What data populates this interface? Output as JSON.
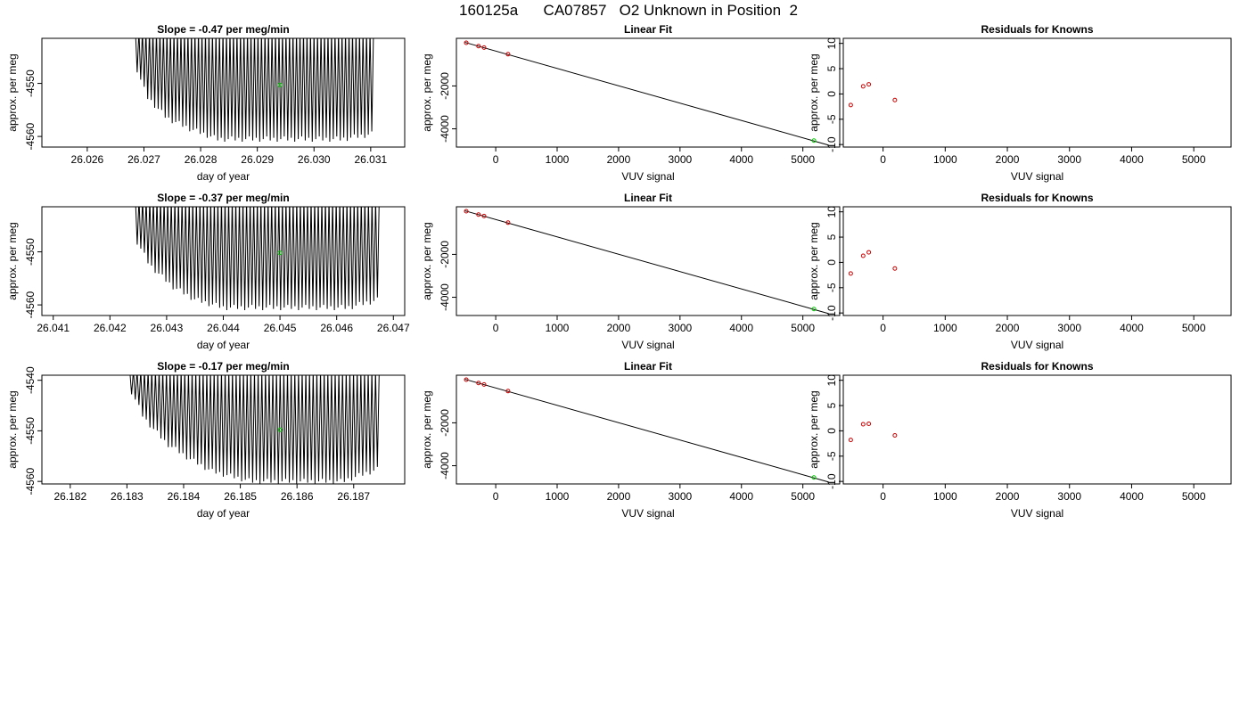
{
  "figure": {
    "title": "160125a      CA07857   O2 Unknown in Position  2"
  },
  "colors": {
    "line": "#000000",
    "known_point": "#cc0000",
    "unknown_point": "#00cc00"
  },
  "chart_data": [
    {
      "type": "line",
      "title": "Slope =  -0.47  per meg/min",
      "xlabel": "day of year",
      "ylabel": "approx. per meg",
      "xlim": [
        26.0252,
        26.0316
      ],
      "ylim": [
        -4562,
        -4541.5
      ],
      "xticks": [
        26.026,
        26.027,
        26.028,
        26.029,
        26.03,
        26.031
      ],
      "xtick_labels": [
        "26.026",
        "26.027",
        "26.028",
        "26.029",
        "26.030",
        "26.031"
      ],
      "yticks": [
        -4550,
        -4560
      ],
      "ytick_labels": [
        "-4550",
        "-4560"
      ],
      "series": [
        {
          "x_start": 26.02685,
          "x_end": 26.03105,
          "peak_count": 68,
          "upper_envelope": [
            [
              26.02685,
              -4540
            ],
            [
              26.0312,
              -4540
            ]
          ],
          "lower_envelope": [
            [
              26.02685,
              -4547
            ],
            [
              26.02705,
              -4553
            ],
            [
              26.0274,
              -4557
            ],
            [
              26.0278,
              -4559
            ],
            [
              26.0283,
              -4561
            ],
            [
              26.0305,
              -4561
            ],
            [
              26.03105,
              -4560
            ]
          ]
        }
      ],
      "unknown_point": {
        "x": 26.0294,
        "y": -4550.3
      }
    },
    {
      "type": "scatter",
      "title": "Linear Fit",
      "xlabel": "VUV signal",
      "ylabel": "approx. per meg",
      "xlim": [
        -640,
        5600
      ],
      "ylim": [
        -4850,
        220
      ],
      "xticks": [
        0,
        1000,
        2000,
        3000,
        4000,
        5000
      ],
      "xtick_labels": [
        "0",
        "1000",
        "2000",
        "3000",
        "4000",
        "5000"
      ],
      "yticks": [
        -2000,
        -4000
      ],
      "ytick_labels": [
        "-2000",
        "-4000"
      ],
      "fit_line": [
        [
          -500,
          30
        ],
        [
          5420,
          -4760
        ]
      ],
      "knowns": [
        [
          -480,
          12
        ],
        [
          -280,
          -145
        ],
        [
          -190,
          -210
        ],
        [
          200,
          -520
        ]
      ],
      "unknown_point": {
        "x": 5180,
        "y": -4550
      }
    },
    {
      "type": "scatter",
      "title": "Residuals for Knowns",
      "xlabel": "VUV signal",
      "ylabel": "approx. per meg",
      "xlim": [
        -640,
        5600
      ],
      "ylim": [
        -10.5,
        11
      ],
      "xticks": [
        0,
        1000,
        2000,
        3000,
        4000,
        5000
      ],
      "xtick_labels": [
        "0",
        "1000",
        "2000",
        "3000",
        "4000",
        "5000"
      ],
      "yticks": [
        10,
        5,
        0,
        -5,
        -10
      ],
      "ytick_labels": [
        "10",
        "5",
        "0",
        "-5",
        "-10"
      ],
      "points": [
        [
          -520,
          -2.2
        ],
        [
          -320,
          1.5
        ],
        [
          -230,
          1.9
        ],
        [
          190,
          -1.2
        ]
      ]
    },
    {
      "type": "line",
      "title": "Slope =  -0.37  per meg/min",
      "xlabel": "day of year",
      "ylabel": "approx. per meg",
      "xlim": [
        26.0408,
        26.0472
      ],
      "ylim": [
        -4562,
        -4541.5
      ],
      "xticks": [
        26.041,
        26.042,
        26.043,
        26.044,
        26.045,
        26.046,
        26.047
      ],
      "xtick_labels": [
        "26.041",
        "26.042",
        "26.043",
        "26.044",
        "26.045",
        "26.046",
        "26.047"
      ],
      "yticks": [
        -4550,
        -4560
      ],
      "ytick_labels": [
        "-4550",
        "-4560"
      ],
      "series": [
        {
          "x_start": 26.04245,
          "x_end": 26.04675,
          "peak_count": 68,
          "upper_envelope": [
            [
              26.04245,
              -4540
            ],
            [
              26.0469,
              -4540
            ]
          ],
          "lower_envelope": [
            [
              26.04245,
              -4548
            ],
            [
              26.0427,
              -4553
            ],
            [
              26.0431,
              -4557
            ],
            [
              26.0435,
              -4559.5
            ],
            [
              26.044,
              -4561
            ],
            [
              26.0462,
              -4561
            ],
            [
              26.04675,
              -4559.5
            ]
          ]
        }
      ],
      "unknown_point": {
        "x": 26.045,
        "y": -4550.2
      }
    },
    {
      "type": "scatter",
      "title": "Linear Fit",
      "xlabel": "VUV signal",
      "ylabel": "approx. per meg",
      "xlim": [
        -640,
        5600
      ],
      "ylim": [
        -4850,
        220
      ],
      "xticks": [
        0,
        1000,
        2000,
        3000,
        4000,
        5000
      ],
      "xtick_labels": [
        "0",
        "1000",
        "2000",
        "3000",
        "4000",
        "5000"
      ],
      "yticks": [
        -2000,
        -4000
      ],
      "ytick_labels": [
        "-2000",
        "-4000"
      ],
      "fit_line": [
        [
          -500,
          30
        ],
        [
          5420,
          -4760
        ]
      ],
      "knowns": [
        [
          -480,
          12
        ],
        [
          -280,
          -145
        ],
        [
          -190,
          -210
        ],
        [
          200,
          -520
        ]
      ],
      "unknown_point": {
        "x": 5180,
        "y": -4550
      }
    },
    {
      "type": "scatter",
      "title": "Residuals for Knowns",
      "xlabel": "VUV signal",
      "ylabel": "approx. per meg",
      "xlim": [
        -640,
        5600
      ],
      "ylim": [
        -10.5,
        11
      ],
      "xticks": [
        0,
        1000,
        2000,
        3000,
        4000,
        5000
      ],
      "xtick_labels": [
        "0",
        "1000",
        "2000",
        "3000",
        "4000",
        "5000"
      ],
      "yticks": [
        10,
        5,
        0,
        -5,
        -10
      ],
      "ytick_labels": [
        "10",
        "5",
        "0",
        "-5",
        "-10"
      ],
      "points": [
        [
          -520,
          -2.2
        ],
        [
          -320,
          1.3
        ],
        [
          -230,
          2.0
        ],
        [
          190,
          -1.2
        ]
      ]
    },
    {
      "type": "line",
      "title": "Slope =  -0.17  per meg/min",
      "xlabel": "day of year",
      "ylabel": "approx. per meg",
      "xlim": [
        26.1815,
        26.1879
      ],
      "ylim": [
        -4560.5,
        -4539
      ],
      "xticks": [
        26.182,
        26.183,
        26.184,
        26.185,
        26.186,
        26.187
      ],
      "xtick_labels": [
        "26.182",
        "26.183",
        "26.184",
        "26.185",
        "26.186",
        "26.187"
      ],
      "yticks": [
        -4540,
        -4550,
        -4560
      ],
      "ytick_labels": [
        "-4540",
        "-4550",
        "-4560"
      ],
      "series": [
        {
          "x_start": 26.18305,
          "x_end": 26.18745,
          "peak_count": 68,
          "upper_envelope": [
            [
              26.18305,
              -4538
            ],
            [
              26.1876,
              -4538
            ]
          ],
          "lower_envelope": [
            [
              26.18305,
              -4542
            ],
            [
              26.1833,
              -4548
            ],
            [
              26.1837,
              -4553
            ],
            [
              26.1841,
              -4556
            ],
            [
              26.1845,
              -4558.5
            ],
            [
              26.1852,
              -4560.5
            ],
            [
              26.1868,
              -4560.5
            ],
            [
              26.18745,
              -4558
            ]
          ]
        }
      ],
      "unknown_point": {
        "x": 26.1857,
        "y": -4549.8
      }
    },
    {
      "type": "scatter",
      "title": "Linear Fit",
      "xlabel": "VUV signal",
      "ylabel": "approx. per meg",
      "xlim": [
        -640,
        5600
      ],
      "ylim": [
        -4850,
        220
      ],
      "xticks": [
        0,
        1000,
        2000,
        3000,
        4000,
        5000
      ],
      "xtick_labels": [
        "0",
        "1000",
        "2000",
        "3000",
        "4000",
        "5000"
      ],
      "yticks": [
        -2000,
        -4000
      ],
      "ytick_labels": [
        "-2000",
        "-4000"
      ],
      "fit_line": [
        [
          -500,
          30
        ],
        [
          5420,
          -4760
        ]
      ],
      "knowns": [
        [
          -480,
          12
        ],
        [
          -280,
          -145
        ],
        [
          -190,
          -210
        ],
        [
          200,
          -520
        ]
      ],
      "unknown_point": {
        "x": 5180,
        "y": -4550
      }
    },
    {
      "type": "scatter",
      "title": "Residuals for Knowns",
      "xlabel": "VUV signal",
      "ylabel": "approx. per meg",
      "xlim": [
        -640,
        5600
      ],
      "ylim": [
        -10.5,
        11
      ],
      "xticks": [
        0,
        1000,
        2000,
        3000,
        4000,
        5000
      ],
      "xtick_labels": [
        "0",
        "1000",
        "2000",
        "3000",
        "4000",
        "5000"
      ],
      "yticks": [
        10,
        5,
        0,
        -5,
        -10
      ],
      "ytick_labels": [
        "10",
        "5",
        "0",
        "-5",
        "-10"
      ],
      "points": [
        [
          -520,
          -1.8
        ],
        [
          -320,
          1.3
        ],
        [
          -230,
          1.4
        ],
        [
          190,
          -0.9
        ]
      ]
    }
  ]
}
